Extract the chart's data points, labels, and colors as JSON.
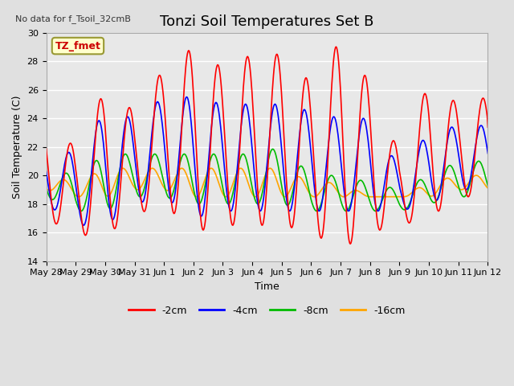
{
  "title": "Tonzi Soil Temperatures Set B",
  "xlabel": "Time",
  "ylabel": "Soil Temperature (C)",
  "no_data_text": "No data for f_Tsoil_32cmB",
  "legend_label_text": "TZ_fmet",
  "ylim": [
    14,
    30
  ],
  "xlim": [
    0,
    15
  ],
  "series_colors": [
    "#ff0000",
    "#0000ff",
    "#00bb00",
    "#ffa500"
  ],
  "series_labels": [
    "-2cm",
    "-4cm",
    "-8cm",
    "-16cm"
  ],
  "x_tick_labels": [
    "May 28",
    "May 29",
    "May 30",
    "May 31",
    "Jun 1",
    "Jun 2",
    "Jun 3",
    "Jun 4",
    "Jun 5",
    "Jun 6",
    "Jun 7",
    "Jun 8",
    "Jun 9",
    "Jun 10",
    "Jun 11",
    "Jun 12"
  ],
  "yticks": [
    14,
    16,
    18,
    20,
    22,
    24,
    26,
    28,
    30
  ],
  "fig_facecolor": "#e0e0e0",
  "ax_facecolor": "#e8e8e8",
  "grid_color": "#ffffff",
  "title_fontsize": 13,
  "axis_fontsize": 9,
  "tick_fontsize": 8,
  "linewidth": 1.2,
  "legend_fontsize": 9,
  "no_data_fontsize": 8,
  "tzfmet_fontsize": 9,
  "tzfmet_color": "#cc0000",
  "tzfmet_bg": "#ffffcc",
  "tzfmet_edge": "#999933"
}
